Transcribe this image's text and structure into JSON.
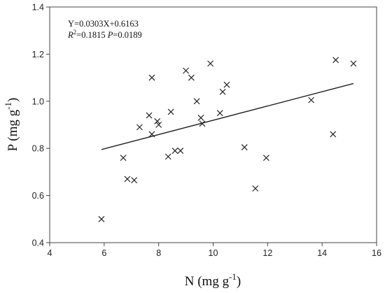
{
  "chart_data": {
    "type": "scatter",
    "title": "",
    "xlabel": "N (mg g",
    "xlabel_sup": "-1",
    "xlabel_end": ")",
    "ylabel": "P (mg g",
    "ylabel_sup": "-1",
    "ylabel_end": ")",
    "xlim": [
      4,
      16
    ],
    "ylim": [
      0.4,
      1.4
    ],
    "xticks": [
      4,
      6,
      8,
      10,
      12,
      14,
      16
    ],
    "yticks": [
      0.4,
      0.6,
      0.8,
      1.0,
      1.2,
      1.4
    ],
    "xtick_labels": [
      "4",
      "6",
      "8",
      "10",
      "12",
      "14",
      "16"
    ],
    "ytick_labels": [
      "0.4",
      "0.6",
      "0.8",
      "1.0",
      "1.2",
      "1.4"
    ],
    "grid": false,
    "marker": "x",
    "points": [
      {
        "x": 5.9,
        "y": 0.5
      },
      {
        "x": 6.7,
        "y": 0.76
      },
      {
        "x": 6.85,
        "y": 0.67
      },
      {
        "x": 7.1,
        "y": 0.665
      },
      {
        "x": 7.3,
        "y": 0.89
      },
      {
        "x": 7.65,
        "y": 0.94
      },
      {
        "x": 7.75,
        "y": 1.1
      },
      {
        "x": 7.75,
        "y": 0.86
      },
      {
        "x": 7.95,
        "y": 0.915
      },
      {
        "x": 8.0,
        "y": 0.9
      },
      {
        "x": 8.35,
        "y": 0.765
      },
      {
        "x": 8.45,
        "y": 0.955
      },
      {
        "x": 8.6,
        "y": 0.79
      },
      {
        "x": 8.8,
        "y": 0.79
      },
      {
        "x": 9.0,
        "y": 1.13
      },
      {
        "x": 9.2,
        "y": 1.1
      },
      {
        "x": 9.4,
        "y": 1.0
      },
      {
        "x": 9.55,
        "y": 0.93
      },
      {
        "x": 9.6,
        "y": 0.905
      },
      {
        "x": 9.9,
        "y": 1.16
      },
      {
        "x": 10.25,
        "y": 0.95
      },
      {
        "x": 10.35,
        "y": 1.04
      },
      {
        "x": 10.5,
        "y": 1.07
      },
      {
        "x": 11.15,
        "y": 0.805
      },
      {
        "x": 11.55,
        "y": 0.63
      },
      {
        "x": 11.95,
        "y": 0.76
      },
      {
        "x": 13.6,
        "y": 1.005
      },
      {
        "x": 14.4,
        "y": 0.86
      },
      {
        "x": 14.5,
        "y": 1.175
      },
      {
        "x": 15.15,
        "y": 1.16
      }
    ],
    "fit": {
      "slope": 0.0303,
      "intercept": 0.6163,
      "x_start": 5.9,
      "x_end": 15.15
    },
    "annotation": {
      "equation": "Y=0.0303X+0.6163",
      "r2_symbol": "R",
      "r2_sup": "2",
      "r2_value": "=0.1815 ",
      "p_symbol": "P",
      "p_value": "=0.0189"
    }
  }
}
